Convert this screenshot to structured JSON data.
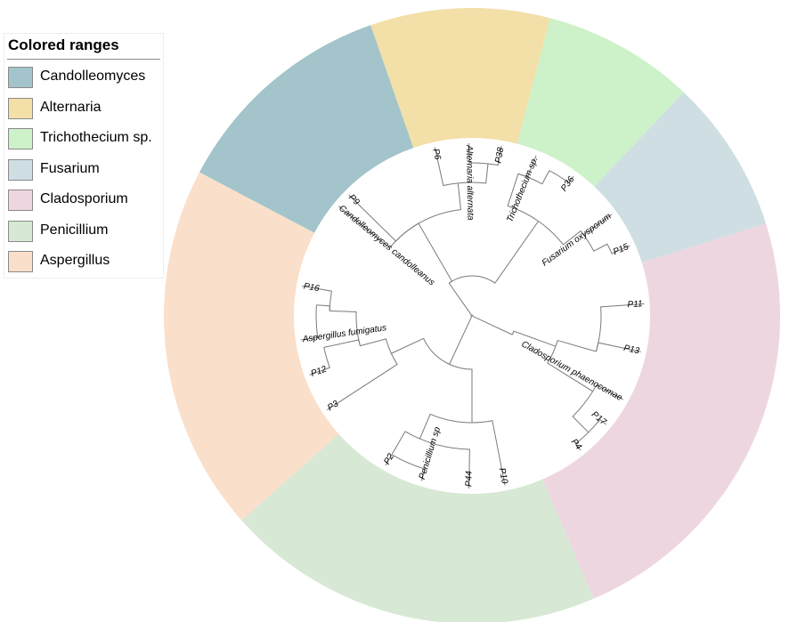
{
  "legend": {
    "title": "Colored ranges",
    "items": [
      {
        "label": "Candolleomyces",
        "color": "#a2c4ca"
      },
      {
        "label": "Alternaria",
        "color": "#f3dfa8"
      },
      {
        "label": "Trichothecium sp.",
        "color": "#cdf1c8"
      },
      {
        "label": "Fusarium",
        "color": "#cfdee3"
      },
      {
        "label": "Cladosporium",
        "color": "#eed6e1"
      },
      {
        "label": "Penicillium",
        "color": "#d7e8d4"
      },
      {
        "label": "Aspergillus",
        "color": "#fadfca"
      }
    ]
  },
  "tree": {
    "layout": "circular",
    "branch_color": "#7a7a7a",
    "ranges": [
      {
        "group": "Candolleomyces",
        "start": 297.8,
        "end": 340.8
      },
      {
        "group": "Alternaria",
        "start": 340.8,
        "end": 14.7
      },
      {
        "group": "Trichothecium sp.",
        "start": 14.7,
        "end": 43.4
      },
      {
        "group": "Fusarium",
        "start": 43.4,
        "end": 72.6
      },
      {
        "group": "Cladosporium",
        "start": 72.6,
        "end": 156.7
      },
      {
        "group": "Penicillium",
        "start": 156.7,
        "end": 228.4
      },
      {
        "group": "Aspergillus",
        "start": 228.4,
        "end": 297.8
      }
    ],
    "tips": [
      {
        "label": "P9",
        "angle": 314.5
      },
      {
        "label": "Candolleomyces candolleanus",
        "angle": 309.5
      },
      {
        "label": "P6",
        "angle": 347.6
      },
      {
        "label": "Alternaria alternata",
        "angle": 359.0
      },
      {
        "label": "P38",
        "angle": 9.8
      },
      {
        "label": "Trichothecium sp.",
        "angle": 21.8
      },
      {
        "label": "P36",
        "angle": 36.0
      },
      {
        "label": "Fusarium oxysporum",
        "angle": 54.0
      },
      {
        "label": "P15",
        "angle": 66.0
      },
      {
        "label": "P11",
        "angle": 86.0
      },
      {
        "label": "P13",
        "angle": 102.0
      },
      {
        "label": "Cladosporium phaenocomae",
        "angle": 119.0
      },
      {
        "label": "P17",
        "angle": 129.0
      },
      {
        "label": "P4",
        "angle": 141.0
      },
      {
        "label": "P10",
        "angle": 169.0
      },
      {
        "label": "P44",
        "angle": 181.0
      },
      {
        "label": "Penicillium sp",
        "angle": 197.0
      },
      {
        "label": "P2",
        "angle": 210.0
      },
      {
        "label": "P3",
        "angle": 237.0
      },
      {
        "label": "P12",
        "angle": 250.0
      },
      {
        "label": "Aspergillus fumigatus",
        "angle": 262.0
      },
      {
        "label": "P16",
        "angle": 280.0
      }
    ]
  }
}
